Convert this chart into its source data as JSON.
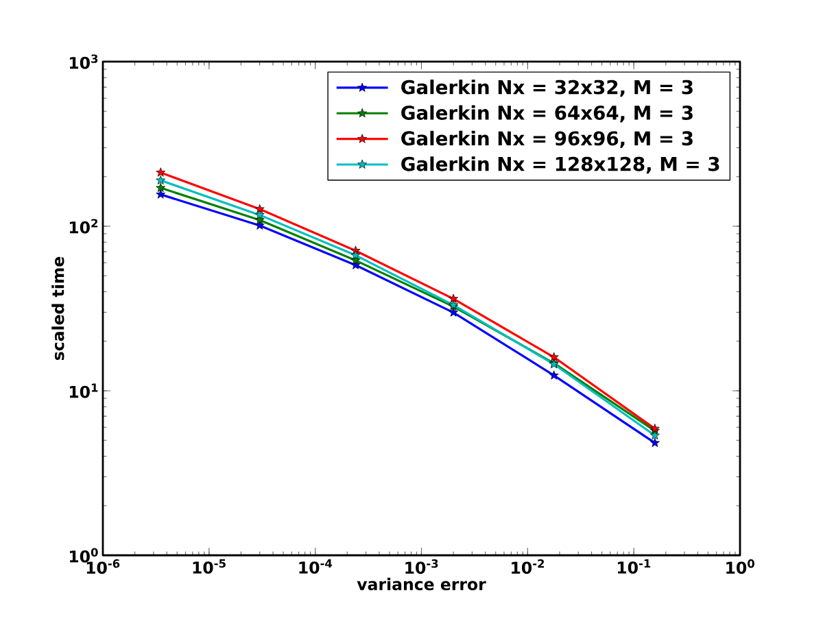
{
  "chart_data": {
    "type": "line",
    "xlabel": "variance error",
    "ylabel": "scaled time",
    "x": [
      3.5e-06,
      3e-05,
      0.00024,
      0.002,
      0.0177,
      0.158
    ],
    "series": [
      {
        "name": "Galerkin Nx = 32x32, M = 3",
        "color": "#0000ff",
        "values": [
          156,
          101,
          58,
          29.9,
          12.4,
          4.82
        ]
      },
      {
        "name": "Galerkin Nx = 64x64, M = 3",
        "color": "#008000",
        "values": [
          171,
          109,
          62,
          32.5,
          14.7,
          5.71
        ]
      },
      {
        "name": "Galerkin Nx = 96x96, M = 3",
        "color": "#ff0000",
        "values": [
          212,
          127,
          71,
          36.2,
          16.0,
          5.88
        ]
      },
      {
        "name": "Galerkin Nx = 128x128, M = 3",
        "color": "#00bfbf",
        "values": [
          190,
          117,
          66.6,
          33.2,
          14.5,
          5.35
        ]
      }
    ],
    "log": "xy",
    "xlim": [
      1e-06,
      1
    ],
    "ylim": [
      1,
      1000
    ],
    "xticks": [
      {
        "value": 1e-06,
        "label": "10$^{-6}$"
      },
      {
        "value": 1e-05,
        "label": "10$^{-5}$"
      },
      {
        "value": 0.0001,
        "label": "10$^{-4}$"
      },
      {
        "value": 0.001,
        "label": "10$^{-3}$"
      },
      {
        "value": 0.01,
        "label": "10$^{-2}$"
      },
      {
        "value": 0.1,
        "label": "10$^{-1}$"
      },
      {
        "value": 1,
        "label": "10$^{0}$"
      }
    ],
    "yticks": [
      {
        "value": 1,
        "label": "10$^{0}$"
      },
      {
        "value": 10,
        "label": "10$^{1}$"
      },
      {
        "value": 100,
        "label": "10$^{2}$"
      },
      {
        "value": 1000,
        "label": "10$^{3}$"
      }
    ],
    "grid": false,
    "legend": "top right",
    "marker": "star",
    "line_style": "solid"
  }
}
